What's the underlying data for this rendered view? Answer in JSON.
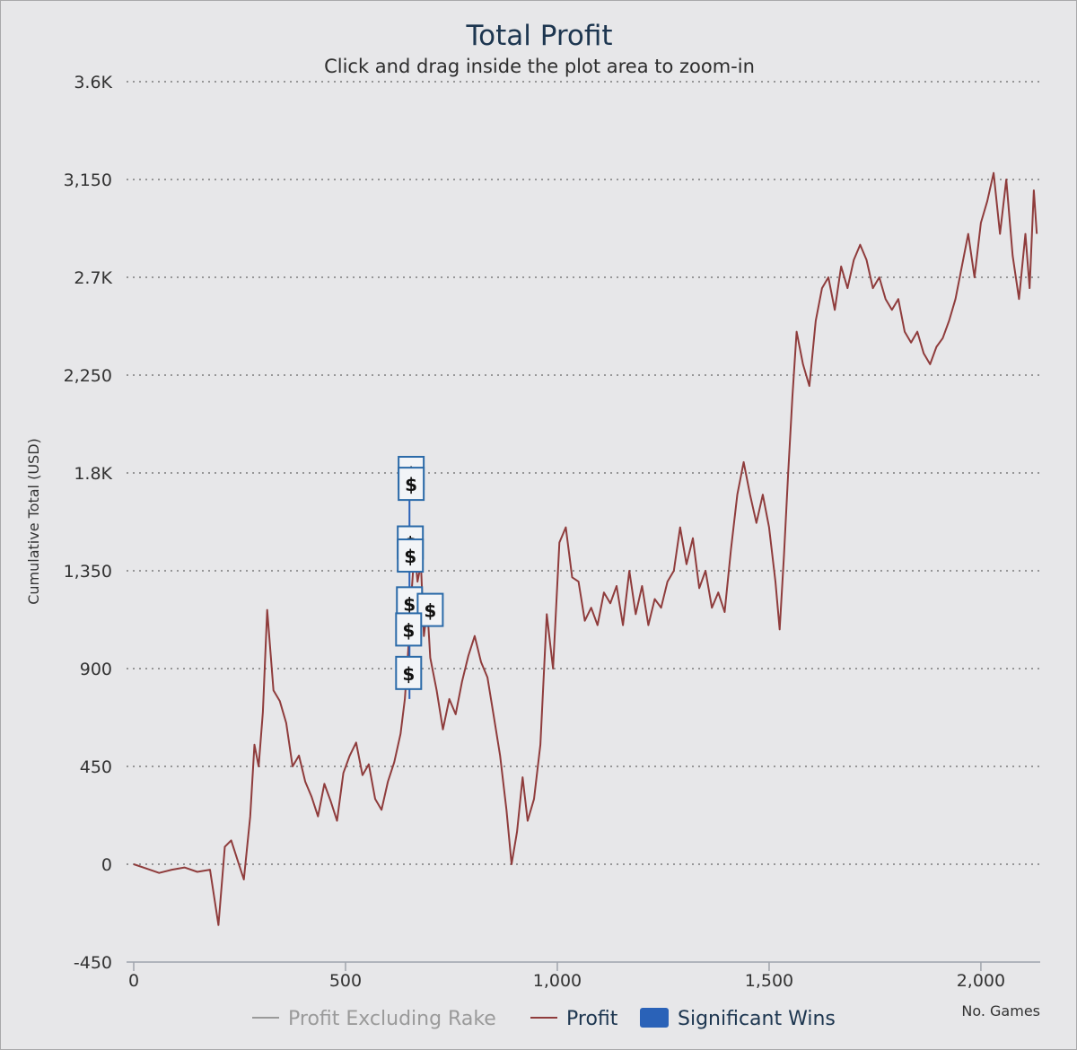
{
  "chart_data": {
    "type": "line",
    "title": "Total Profit",
    "subtitle": "Click and drag inside the plot area to zoom-in",
    "xlabel": "No. Games",
    "ylabel": "Cumulative Total (USD)",
    "xlim": [
      0,
      2140
    ],
    "ylim": [
      -450,
      3600
    ],
    "x_ticks": [
      0,
      500,
      1000,
      1500,
      2000
    ],
    "x_tick_labels": [
      "0",
      "500",
      "1,000",
      "1,500",
      "2,000"
    ],
    "y_ticks": [
      -450,
      0,
      450,
      900,
      1350,
      1800,
      2250,
      2700,
      3150,
      3600
    ],
    "y_tick_labels": [
      "-450",
      "0",
      "450",
      "900",
      "1,350",
      "1.8K",
      "2,250",
      "2.7K",
      "3,150",
      "3.6K"
    ],
    "grid": true,
    "legend_position": "bottom",
    "legend": [
      {
        "name": "Profit Excluding Rake",
        "symbol": "line",
        "color": "#9a9a9a",
        "text_color": "#9a9a9a"
      },
      {
        "name": "Profit",
        "symbol": "line",
        "color": "#8f3c3c",
        "text_color": "#1d3650"
      },
      {
        "name": "Significant Wins",
        "symbol": "box",
        "color": "#2a62b8",
        "text_color": "#1d3650"
      }
    ],
    "series": [
      {
        "name": "Profit",
        "color": "#8f3c3c",
        "points": [
          [
            0,
            0
          ],
          [
            30,
            -20
          ],
          [
            60,
            -40
          ],
          [
            90,
            -25
          ],
          [
            120,
            -15
          ],
          [
            150,
            -35
          ],
          [
            180,
            -25
          ],
          [
            200,
            -280
          ],
          [
            215,
            80
          ],
          [
            230,
            110
          ],
          [
            245,
            20
          ],
          [
            260,
            -70
          ],
          [
            275,
            220
          ],
          [
            285,
            550
          ],
          [
            295,
            450
          ],
          [
            305,
            700
          ],
          [
            315,
            1170
          ],
          [
            330,
            800
          ],
          [
            345,
            750
          ],
          [
            360,
            650
          ],
          [
            375,
            450
          ],
          [
            390,
            500
          ],
          [
            405,
            380
          ],
          [
            420,
            310
          ],
          [
            435,
            220
          ],
          [
            450,
            370
          ],
          [
            465,
            290
          ],
          [
            480,
            200
          ],
          [
            495,
            420
          ],
          [
            510,
            500
          ],
          [
            525,
            560
          ],
          [
            540,
            410
          ],
          [
            555,
            460
          ],
          [
            570,
            300
          ],
          [
            585,
            250
          ],
          [
            600,
            380
          ],
          [
            615,
            470
          ],
          [
            630,
            600
          ],
          [
            640,
            760
          ],
          [
            648,
            980
          ],
          [
            655,
            1220
          ],
          [
            663,
            1450
          ],
          [
            670,
            1300
          ],
          [
            678,
            1380
          ],
          [
            685,
            1050
          ],
          [
            693,
            1180
          ],
          [
            700,
            950
          ],
          [
            715,
            800
          ],
          [
            730,
            620
          ],
          [
            745,
            760
          ],
          [
            760,
            690
          ],
          [
            775,
            840
          ],
          [
            790,
            960
          ],
          [
            805,
            1050
          ],
          [
            820,
            930
          ],
          [
            835,
            860
          ],
          [
            850,
            680
          ],
          [
            865,
            500
          ],
          [
            880,
            250
          ],
          [
            892,
            0
          ],
          [
            905,
            150
          ],
          [
            918,
            400
          ],
          [
            930,
            200
          ],
          [
            945,
            300
          ],
          [
            960,
            550
          ],
          [
            975,
            1150
          ],
          [
            990,
            900
          ],
          [
            1005,
            1480
          ],
          [
            1020,
            1550
          ],
          [
            1035,
            1320
          ],
          [
            1050,
            1300
          ],
          [
            1065,
            1120
          ],
          [
            1080,
            1180
          ],
          [
            1095,
            1100
          ],
          [
            1110,
            1250
          ],
          [
            1125,
            1200
          ],
          [
            1140,
            1280
          ],
          [
            1155,
            1100
          ],
          [
            1170,
            1350
          ],
          [
            1185,
            1150
          ],
          [
            1200,
            1280
          ],
          [
            1215,
            1100
          ],
          [
            1230,
            1220
          ],
          [
            1245,
            1180
          ],
          [
            1260,
            1300
          ],
          [
            1275,
            1350
          ],
          [
            1290,
            1550
          ],
          [
            1305,
            1380
          ],
          [
            1320,
            1500
          ],
          [
            1335,
            1270
          ],
          [
            1350,
            1350
          ],
          [
            1365,
            1180
          ],
          [
            1380,
            1250
          ],
          [
            1395,
            1160
          ],
          [
            1410,
            1450
          ],
          [
            1425,
            1700
          ],
          [
            1440,
            1850
          ],
          [
            1455,
            1700
          ],
          [
            1470,
            1570
          ],
          [
            1485,
            1700
          ],
          [
            1500,
            1550
          ],
          [
            1515,
            1300
          ],
          [
            1525,
            1080
          ],
          [
            1535,
            1420
          ],
          [
            1545,
            1800
          ],
          [
            1555,
            2150
          ],
          [
            1565,
            2450
          ],
          [
            1580,
            2300
          ],
          [
            1595,
            2200
          ],
          [
            1610,
            2500
          ],
          [
            1625,
            2650
          ],
          [
            1640,
            2700
          ],
          [
            1655,
            2550
          ],
          [
            1670,
            2750
          ],
          [
            1685,
            2650
          ],
          [
            1700,
            2780
          ],
          [
            1715,
            2850
          ],
          [
            1730,
            2780
          ],
          [
            1745,
            2650
          ],
          [
            1760,
            2700
          ],
          [
            1775,
            2600
          ],
          [
            1790,
            2550
          ],
          [
            1805,
            2600
          ],
          [
            1820,
            2450
          ],
          [
            1835,
            2400
          ],
          [
            1850,
            2450
          ],
          [
            1865,
            2350
          ],
          [
            1880,
            2300
          ],
          [
            1895,
            2380
          ],
          [
            1910,
            2420
          ],
          [
            1925,
            2500
          ],
          [
            1940,
            2600
          ],
          [
            1955,
            2750
          ],
          [
            1970,
            2900
          ],
          [
            1985,
            2700
          ],
          [
            2000,
            2950
          ],
          [
            2015,
            3050
          ],
          [
            2030,
            3180
          ],
          [
            2045,
            2900
          ],
          [
            2060,
            3150
          ],
          [
            2075,
            2800
          ],
          [
            2090,
            2600
          ],
          [
            2105,
            2900
          ],
          [
            2115,
            2650
          ],
          [
            2125,
            3100
          ],
          [
            2132,
            2900
          ]
        ]
      }
    ],
    "significant_wins": [
      {
        "x": 655,
        "y": 1800,
        "label": "$"
      },
      {
        "x": 655,
        "y": 1750,
        "label": "$"
      },
      {
        "x": 653,
        "y": 1480,
        "label": "$"
      },
      {
        "x": 653,
        "y": 1420,
        "label": "$"
      },
      {
        "x": 651,
        "y": 1200,
        "label": "$"
      },
      {
        "x": 700,
        "y": 1170,
        "label": "$"
      },
      {
        "x": 649,
        "y": 1080,
        "label": "$"
      },
      {
        "x": 649,
        "y": 880,
        "label": "$"
      }
    ]
  }
}
